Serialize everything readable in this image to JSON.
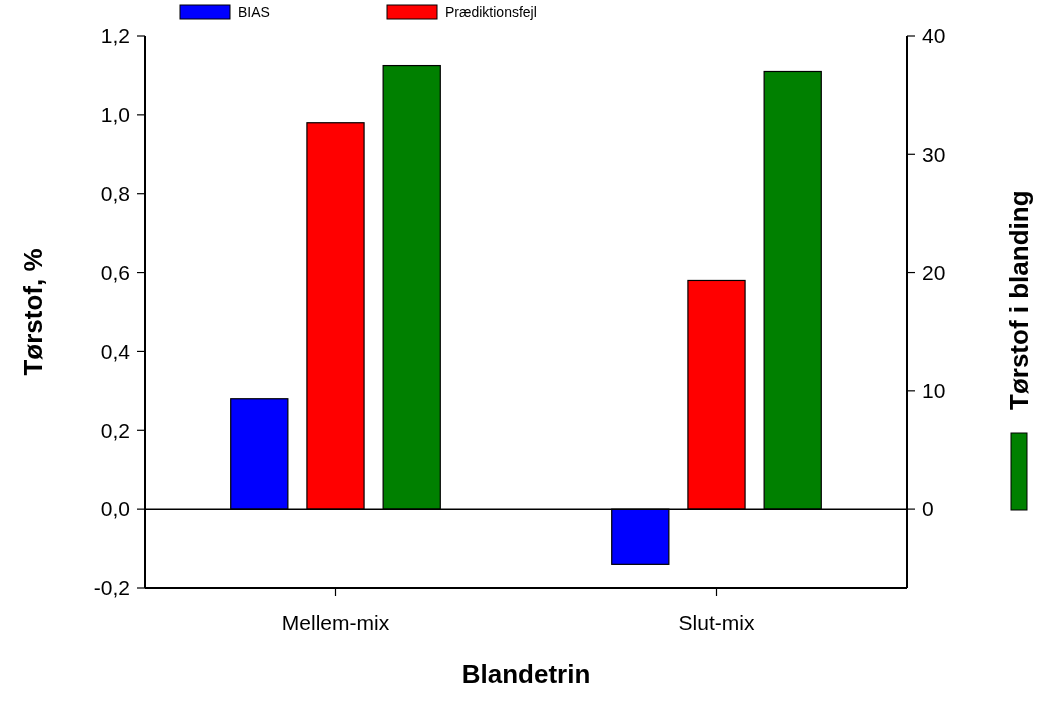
{
  "chart_data": {
    "type": "bar",
    "xlabel": "Blandetrin",
    "ylabel": "Tørstof, %",
    "y2label": "Tørstof i blanding",
    "categories": [
      "Mellem-mix",
      "Slut-mix"
    ],
    "series": [
      {
        "name": "BIAS",
        "color": "#0000ff",
        "values": [
          0.28,
          -0.14
        ]
      },
      {
        "name": "Prædiktionsfejl",
        "color": "#ff0000",
        "values": [
          0.98,
          0.58
        ]
      },
      {
        "color": "#008000",
        "values": [
          37.5,
          37.0
        ],
        "axis": "y2"
      }
    ],
    "ylim": [
      -0.2,
      1.2
    ],
    "yticks": [
      {
        "value": -0.2,
        "label": "-0,2"
      },
      {
        "value": 0,
        "label": "0,0"
      },
      {
        "value": 0.2,
        "label": "0,2"
      },
      {
        "value": 0.4,
        "label": "0,4"
      },
      {
        "value": 0.6,
        "label": "0,6"
      },
      {
        "value": 0.8,
        "label": "0,8"
      },
      {
        "value": 1.0,
        "label": "1,0"
      },
      {
        "value": 1.2,
        "label": "1,2"
      }
    ],
    "y2lim": [
      -6.67,
      40
    ],
    "y2ticks": [
      0,
      10,
      20,
      30,
      40
    ],
    "ref_lines": [
      {
        "axis": "y",
        "value": 0
      }
    ],
    "legend": "top"
  }
}
